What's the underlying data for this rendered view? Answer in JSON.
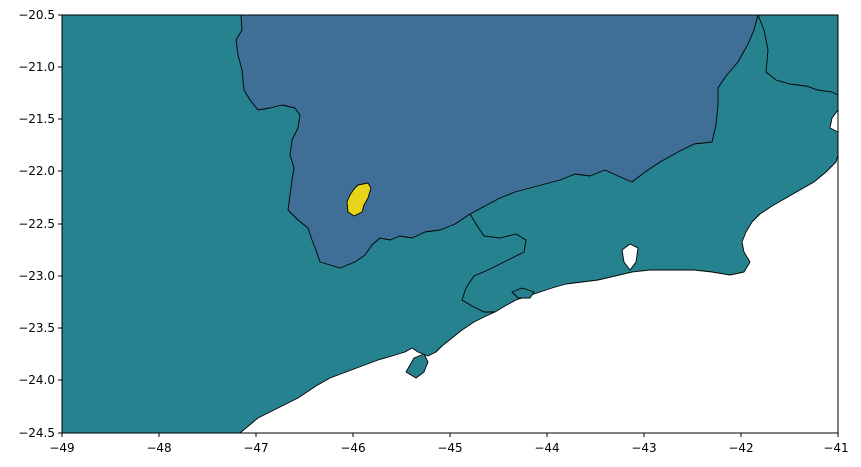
{
  "map": {
    "xlim": [
      -49,
      -41
    ],
    "ylim": [
      -24.5,
      -20.5
    ],
    "x_ticks": [
      "−49",
      "−48",
      "−47",
      "−46",
      "−45",
      "−44",
      "−43",
      "−42",
      "−41"
    ],
    "x_tick_values": [
      -49,
      -48,
      -47,
      -46,
      -45,
      -44,
      -43,
      -42,
      -41
    ],
    "y_ticks": [
      "−20.5",
      "−21.0",
      "−21.5",
      "−22.0",
      "−22.5",
      "−23.0",
      "−23.5",
      "−24.0",
      "−24.5"
    ],
    "y_tick_values": [
      -20.5,
      -21.0,
      -21.5,
      -22.0,
      -22.5,
      -23.0,
      -23.5,
      -24.0,
      -24.5
    ],
    "colors": {
      "teal_regions": "#26828e",
      "blue_region": "#3f6f96",
      "yellow_region": "#e6d31a",
      "ocean": "#ffffff",
      "border": "#000000"
    },
    "regions": [
      {
        "id": "land-teal",
        "fill": "teal_regions"
      },
      {
        "id": "minas-gerais-blue",
        "fill": "blue_region"
      },
      {
        "id": "small-yellow-area",
        "fill": "yellow_region"
      }
    ]
  }
}
